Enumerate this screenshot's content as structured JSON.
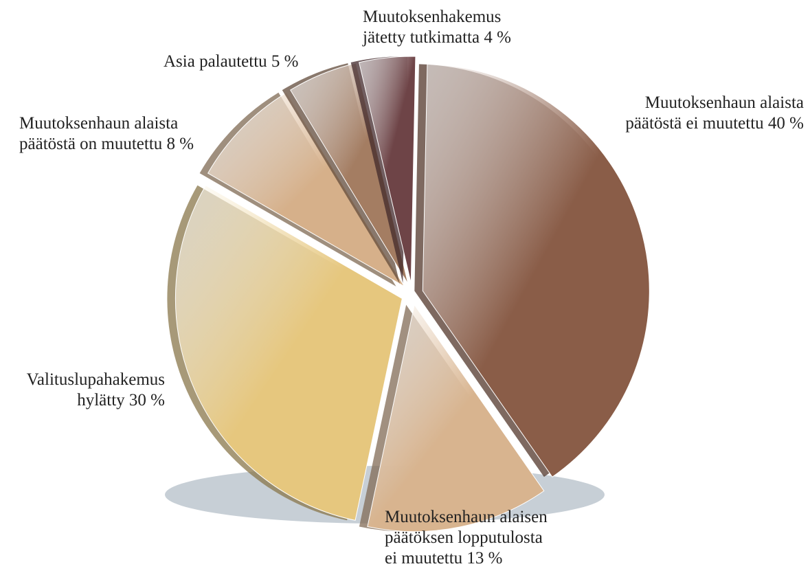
{
  "chart_data": {
    "type": "pie",
    "categories": [
      "Muutoksenhaun alaista\npäätöstä ei muutettu",
      "Muutoksenhaun alaisen\npäätöksen lopputulosta\nei muutettu",
      "Valituslupahakemus\nhylätty",
      "Muutoksenhaun alaista\npäätöstä on muutettu",
      "Asia palautettu",
      "Muutoksenhakemus\njätetty tutkimatta"
    ],
    "values": [
      40,
      13,
      30,
      8,
      5,
      4
    ],
    "value_labels": [
      "40 %",
      "13 %",
      "30 %",
      "8 %",
      "5 %",
      "4 %"
    ],
    "colors": [
      "#8a5d48",
      "#d8b48f",
      "#e6c77e",
      "#d6b08a",
      "#a47d62",
      "#6e4447"
    ]
  }
}
